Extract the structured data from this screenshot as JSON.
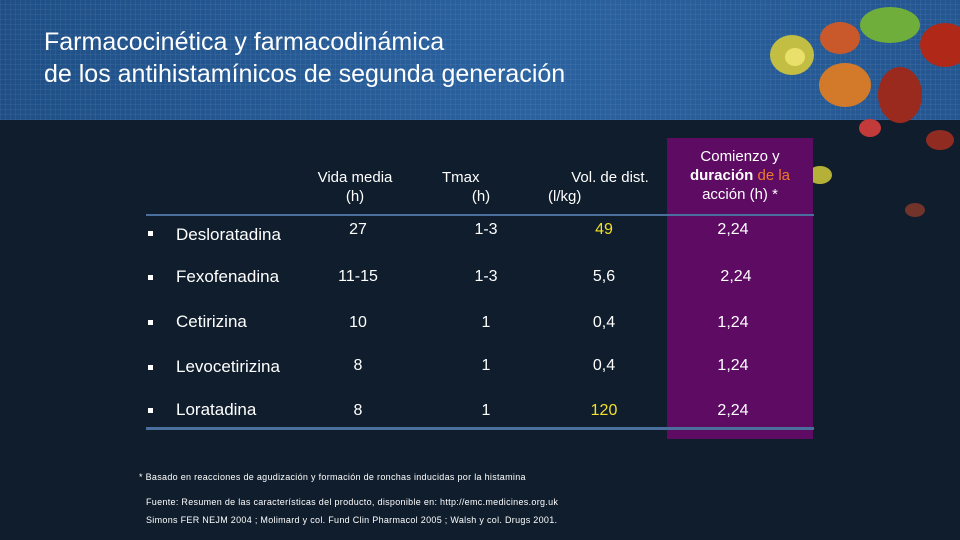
{
  "slide": {
    "title_line1": "Farmacocinética y farmacodinámica",
    "title_line2": "de los antihistamínicos de segunda generación"
  },
  "table": {
    "headers": {
      "vida_line1": "Vida media",
      "vida_line2": "(h)",
      "tmax_line1": "Tmax",
      "tmax_line2": "(h)",
      "vol_line1": "Vol. de dist.",
      "vol_line2": "(l/kg)",
      "comienzo_line1": "Comienzo y",
      "comienzo_bold": "duración",
      "comienzo_orange": " de la",
      "comienzo_line3": "acción (h) *"
    },
    "rows": [
      {
        "name": "Desloratadina",
        "vida": "27",
        "tmax": "1-3",
        "vol": "49",
        "comienzo": "2,24"
      },
      {
        "name": "Fexofenadina",
        "vida": "11-15",
        "tmax": "1-3",
        "vol": "5,6",
        "comienzo": "2,24"
      },
      {
        "name": "Cetirizina",
        "vida": "10",
        "tmax": "1",
        "vol": "0,4",
        "comienzo": "1,24"
      },
      {
        "name": "Levocetirizina",
        "vida": "8",
        "tmax": "1",
        "vol": "0,4",
        "comienzo": "1,24"
      },
      {
        "name": "Loratadina",
        "vida": "8",
        "tmax": "1",
        "vol": "120",
        "comienzo": "2,24"
      }
    ]
  },
  "notes": {
    "footnote": "* Basado en reacciones de agudización y formación de ronchas inducidas por la histamina",
    "source": "Fuente: Resumen de las características del producto, disponible en:  http://emc.medicines.org.uk",
    "refs": "Simons FER NEJM 2004 ; Molimard y col. Fund Clin Pharmacol 2005 ; Walsh y col. Drugs 2001."
  },
  "colors": {
    "header_blue": "#245690",
    "highlight_purple": "#5d0b63",
    "accent_orange": "#f07b2a",
    "accent_yellow": "#f2e02a"
  }
}
